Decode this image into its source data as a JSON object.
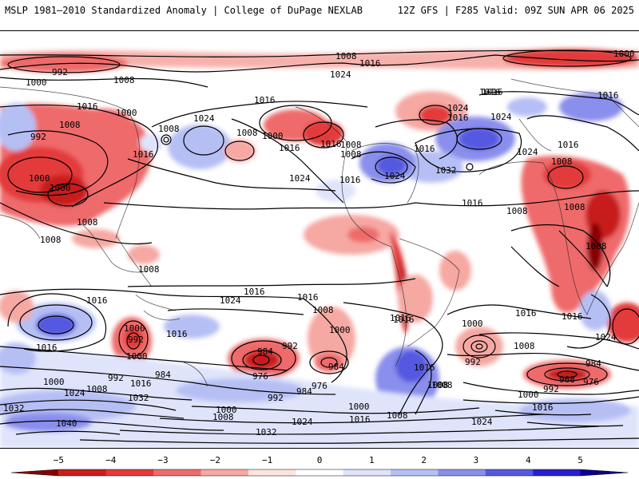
{
  "header": {
    "left": "MSLP 1981–2010 Standardized Anomaly | College of DuPage NEXLAB",
    "right": "12Z GFS | F285 Valid: 09Z SUN APR 06 2025"
  },
  "colorbar": {
    "ticks": [
      "−5",
      "−4",
      "−3",
      "−2",
      "−1",
      "0",
      "1",
      "2",
      "3",
      "4",
      "5"
    ],
    "colors": [
      "#8b0000",
      "#c81e1e",
      "#e33a3a",
      "#ef6b6b",
      "#f6a8a3",
      "#fde4df",
      "#ffffff",
      "#dfe4fb",
      "#b6bff4",
      "#8a8eec",
      "#5459e0",
      "#2a1fcf",
      "#0a0090"
    ]
  },
  "isobars": {
    "l1008a": "1008",
    "l1016a": "1016",
    "l1000a": "1000",
    "l992a": "992",
    "l1000b": "1000",
    "l1008b": "1008",
    "l1024a": "1024",
    "l1016b": "1016",
    "l1016c": "1016",
    "l1008c": "1008",
    "l1000c": "1000",
    "l992b": "992",
    "l1008d": "1008",
    "l1000d": "1000",
    "l1000e": "1000",
    "l1016d": "1016",
    "l1024b": "1024",
    "l1008e": "1008",
    "l1016e": "1016",
    "l1008f": "1008",
    "l1016f": "1016",
    "l1000f": "1000",
    "l1016g": "1016",
    "l1008g": "1008",
    "l1024c": "1024",
    "l1016h": "1016",
    "l1024d": "1024",
    "l1024e": "1024",
    "l1016i": "1016",
    "l1016j": "1016",
    "l1032a": "1032",
    "l1016k": "1016",
    "l1016l": "1016",
    "l1024f": "1024",
    "l1016m": "1016",
    "l1008h": "1008",
    "l1008i": "1008",
    "l1008j": "1008",
    "l1008k": "1008",
    "l1008l": "1008",
    "l1008m": "1008",
    "l1024g": "1024",
    "l1016n": "1016",
    "l1024h": "1024",
    "l1016o": "1016",
    "l1008n": "1008",
    "l1016p": "1016",
    "l1000g": "1000",
    "l992c": "992",
    "l1016q": "1016",
    "l1000h": "1000",
    "l984a": "984",
    "l992d": "992",
    "l976a": "976",
    "l1000i": "1000",
    "l984b": "984",
    "l976b": "976",
    "l992e": "992",
    "l1008o": "1008",
    "l1016r": "1016",
    "l1016s": "1016",
    "l1008p": "1008",
    "l1000j": "1000",
    "l1016t": "1016",
    "l1008q": "1008",
    "l992f": "992",
    "l984c": "984",
    "l968a": "968",
    "l976c": "976",
    "l992g": "992",
    "l1000k": "1000",
    "l1016u": "1016",
    "l1024i": "1024",
    "l1000l": "1000",
    "l992h": "992",
    "l984d": "984",
    "l1024j": "1024",
    "l1008r": "1008",
    "l1032b": "1032",
    "l1016v": "1016",
    "l1032c": "1032",
    "l1040a": "1040",
    "l1000m": "1000",
    "l1008s": "1008",
    "l1032d": "1032",
    "l1024k": "1024",
    "l1016w": "1016",
    "l1008t": "1008",
    "l1024l": "1024",
    "l1016x": "1016",
    "l1016y": "1016",
    "l1008u": "1008"
  }
}
